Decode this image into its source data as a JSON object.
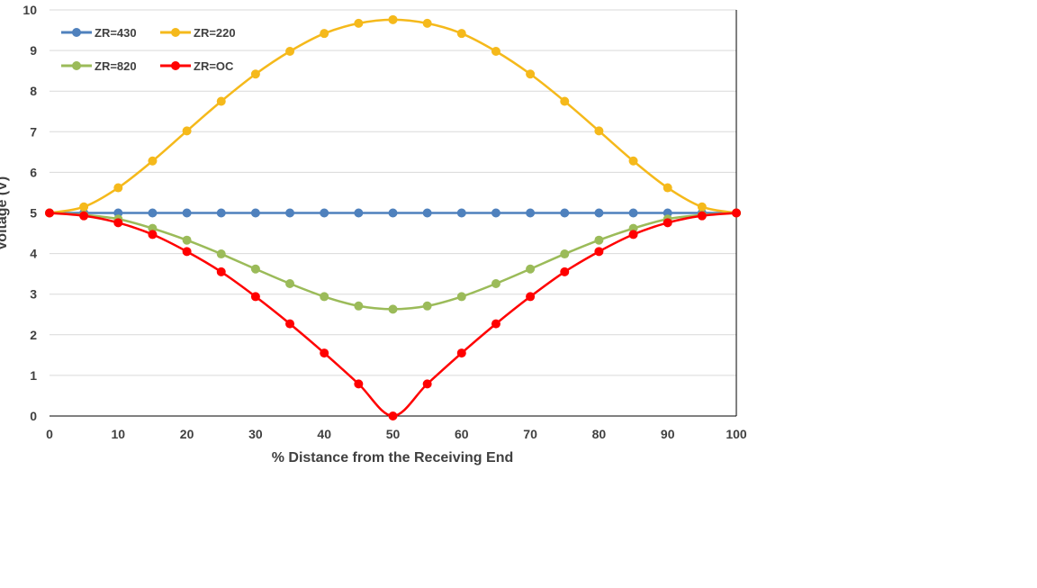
{
  "chart_data": {
    "type": "line",
    "xlabel": "% Distance from the Receiving End",
    "ylabel": "Voltage (V)",
    "xlim": [
      0,
      100
    ],
    "ylim": [
      0,
      10
    ],
    "x_ticks": [
      0,
      10,
      20,
      30,
      40,
      50,
      60,
      70,
      80,
      90,
      100
    ],
    "y_ticks": [
      0,
      1,
      2,
      3,
      4,
      5,
      6,
      7,
      8,
      9,
      10
    ],
    "grid": "horizontal",
    "legend": "top-left",
    "x": [
      0,
      5,
      10,
      15,
      20,
      25,
      30,
      35,
      40,
      45,
      50,
      55,
      60,
      65,
      70,
      75,
      80,
      85,
      90,
      95,
      100
    ],
    "series": [
      {
        "name": "ZR=430",
        "color": "#4f81bd",
        "values": [
          5,
          5,
          5,
          5,
          5,
          5,
          5,
          5,
          5,
          5,
          5,
          5,
          5,
          5,
          5,
          5,
          5,
          5,
          5,
          5,
          5
        ]
      },
      {
        "name": "ZR=220",
        "color": "#f5b91b",
        "values": [
          5.0,
          5.15,
          5.62,
          6.28,
          7.02,
          7.75,
          8.42,
          8.98,
          9.42,
          9.67,
          9.76,
          9.67,
          9.42,
          8.98,
          8.42,
          7.75,
          7.02,
          6.28,
          5.62,
          5.15,
          5.0
        ]
      },
      {
        "name": "ZR=820",
        "color": "#9bbb59",
        "values": [
          5.0,
          4.95,
          4.85,
          4.62,
          4.33,
          3.99,
          3.62,
          3.26,
          2.94,
          2.71,
          2.63,
          2.71,
          2.94,
          3.26,
          3.62,
          3.99,
          4.33,
          4.62,
          4.85,
          4.95,
          5.0
        ]
      },
      {
        "name": "ZR=OC",
        "color": "#ff0000",
        "values": [
          5.0,
          4.93,
          4.76,
          4.47,
          4.05,
          3.55,
          2.94,
          2.27,
          1.55,
          0.79,
          0.0,
          0.79,
          1.55,
          2.27,
          2.94,
          3.55,
          4.05,
          4.47,
          4.76,
          4.93,
          5.0
        ]
      }
    ]
  }
}
